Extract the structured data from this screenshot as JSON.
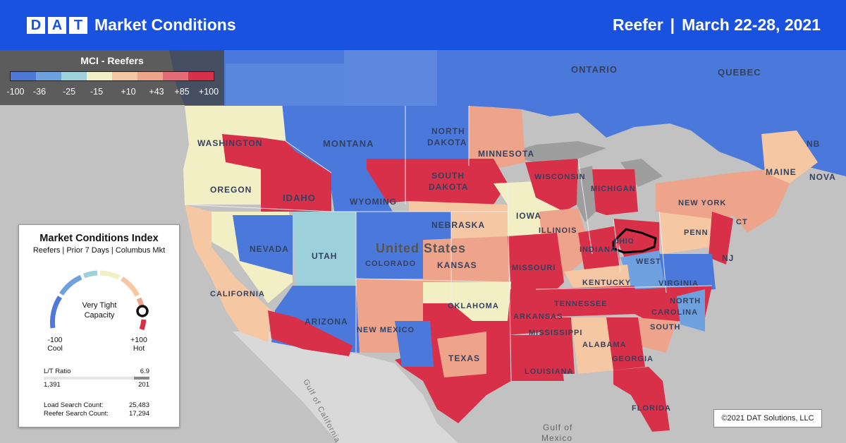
{
  "header": {
    "logo_letters": [
      "D",
      "A",
      "T"
    ],
    "title": "Market Conditions",
    "equipment": "Reefer",
    "separator": "|",
    "date_range": "March 22-28, 2021"
  },
  "legend": {
    "title": "MCI - Reefers",
    "ticks": [
      "-100",
      "-36",
      "-25",
      "-15",
      "+10",
      "+43",
      "+85",
      "+100"
    ],
    "colors": [
      "#4e79d9",
      "#6fa0e0",
      "#9cd1dc",
      "#f3efc4",
      "#f5c7a2",
      "#eea48a",
      "#e36c77",
      "#d9304a"
    ]
  },
  "card": {
    "title": "Market Conditions Index",
    "subtitle": "Reefers | Prior 7 Days | Columbus Mkt",
    "gauge_status_line1": "Very Tight",
    "gauge_status_line2": "Capacity",
    "gauge_value": 0.95,
    "min_value": "-100",
    "min_label": "Cool",
    "max_value": "+100",
    "max_label": "Hot",
    "lt_label": "L/T Ratio",
    "lt_value": "6.9",
    "loads": "1,391",
    "trucks": "201",
    "load_search_label": "Load Search Count:",
    "load_search_value": "25,483",
    "reefer_search_label": "Reefer Search Count:",
    "reefer_search_value": "17,294"
  },
  "map_labels": {
    "ontario": "ONTARIO",
    "quebec": "QUEBEC",
    "washington": "WASHINGTON",
    "montana": "MONTANA",
    "north_dakota_1": "NORTH",
    "north_dakota_2": "DAKOTA",
    "minnesota": "MINNESOTA",
    "south_dakota_1": "SOUTH",
    "south_dakota_2": "DAKOTA",
    "oregon": "OREGON",
    "idaho": "IDAHO",
    "wyoming": "WYOMING",
    "wisconsin": "WISCONSIN",
    "michigan": "MICHIGAN",
    "iowa": "IOWA",
    "nebraska": "NEBRASKA",
    "nevada": "NEVADA",
    "utah": "UTAH",
    "united_states": "United States",
    "illinois": "ILLINOIS",
    "indiana": "INDIANA",
    "ohio": "OHIO",
    "penn": "PENN",
    "new_york": "NEW YORK",
    "maine": "MAINE",
    "nb": "NB",
    "nova": "NOVA",
    "ct": "CT",
    "nj": "NJ",
    "colorado": "COLORADO",
    "kansas": "KANSAS",
    "missouri": "MISSOURI",
    "kentucky": "KENTUCKY",
    "west_virginia": "WEST",
    "virginia": "VIRGINIA",
    "california": "CALIFORNIA",
    "arizona": "ARIZONA",
    "new_mexico": "NEW MEXICO",
    "oklahoma": "OKLAHOMA",
    "arkansas": "ARKANSAS",
    "tennessee": "TENNESSEE",
    "north_carolina": "NORTH",
    "carolina": "CAROLINA",
    "south": "SOUTH",
    "mississippi": "MISSISSIPPI",
    "alabama": "ALABAMA",
    "georgia": "GEORGIA",
    "texas": "TEXAS",
    "louisiana": "LOUISIANA",
    "florida": "FLORIDA",
    "gulf_of_mexico": "Gulf of",
    "mexico": "Mexico",
    "gulf_of_california": "Gulf of California"
  },
  "copyright": "©2021 DAT Solutions, LLC"
}
